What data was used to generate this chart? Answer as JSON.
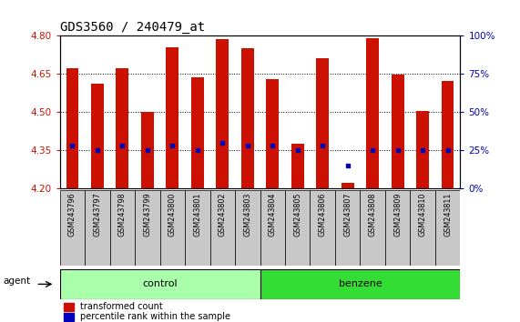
{
  "title": "GDS3560 / 240479_at",
  "samples": [
    "GSM243796",
    "GSM243797",
    "GSM243798",
    "GSM243799",
    "GSM243800",
    "GSM243801",
    "GSM243802",
    "GSM243803",
    "GSM243804",
    "GSM243805",
    "GSM243806",
    "GSM243807",
    "GSM243808",
    "GSM243809",
    "GSM243810",
    "GSM243811"
  ],
  "red_values": [
    4.67,
    4.61,
    4.67,
    4.5,
    4.755,
    4.635,
    4.785,
    4.75,
    4.63,
    4.375,
    4.71,
    4.22,
    4.79,
    4.645,
    4.505,
    4.62
  ],
  "blue_percentile": [
    28,
    25,
    28,
    25,
    28,
    25,
    30,
    28,
    28,
    25,
    28,
    15,
    25,
    25,
    25,
    25
  ],
  "ylim_left": [
    4.2,
    4.8
  ],
  "ylim_right": [
    0,
    100
  ],
  "yticks_left": [
    4.2,
    4.35,
    4.5,
    4.65,
    4.8
  ],
  "yticks_right": [
    0,
    25,
    50,
    75,
    100
  ],
  "bar_color": "#CC1100",
  "blue_color": "#0000BB",
  "bar_bottom": 4.2,
  "n_control": 8,
  "control_color": "#AAFFAA",
  "benzene_color": "#33DD33",
  "agent_label": "agent",
  "control_label": "control",
  "benzene_label": "benzene",
  "legend_red": "transformed count",
  "legend_blue": "percentile rank within the sample",
  "bar_width": 0.5,
  "tick_color_left": "#CC1100",
  "tick_color_right": "#0000BB",
  "dotted_grid": [
    4.35,
    4.5,
    4.65
  ],
  "xticklabel_bg": "#C8C8C8"
}
